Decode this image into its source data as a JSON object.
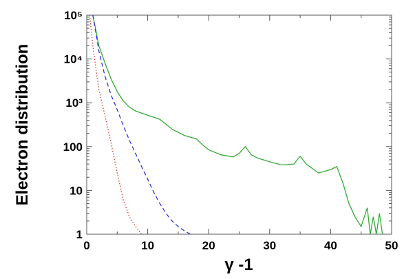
{
  "chart_data": {
    "type": "line",
    "title": "",
    "xlabel": "γ -1",
    "ylabel": "Electron distribution",
    "xlim": [
      0,
      50
    ],
    "ylim": [
      1,
      100000
    ],
    "yscale": "log",
    "grid": false,
    "legend": "none",
    "x_ticks": [
      0,
      10,
      20,
      30,
      40,
      50
    ],
    "y_ticks": [
      {
        "value": 1,
        "label": "1"
      },
      {
        "value": 10,
        "label": "10"
      },
      {
        "value": 100,
        "label": "100"
      },
      {
        "value": 1000,
        "label": "10³"
      },
      {
        "value": 10000,
        "label": "10⁴"
      },
      {
        "value": 100000,
        "label": "10⁵"
      }
    ],
    "series": [
      {
        "color": "#33aa33",
        "style": "solid",
        "points": [
          [
            1,
            100000
          ],
          [
            1.5,
            45000
          ],
          [
            2,
            20000
          ],
          [
            3,
            8000
          ],
          [
            4,
            3500
          ],
          [
            5,
            1800
          ],
          [
            6,
            1100
          ],
          [
            7,
            800
          ],
          [
            8,
            650
          ],
          [
            10,
            520
          ],
          [
            12,
            420
          ],
          [
            14,
            250
          ],
          [
            16,
            180
          ],
          [
            18,
            150
          ],
          [
            19,
            110
          ],
          [
            20,
            85
          ],
          [
            22,
            65
          ],
          [
            24,
            58
          ],
          [
            25,
            70
          ],
          [
            26,
            100
          ],
          [
            27,
            65
          ],
          [
            28,
            55
          ],
          [
            30,
            45
          ],
          [
            32,
            38
          ],
          [
            34,
            40
          ],
          [
            35,
            60
          ],
          [
            36,
            40
          ],
          [
            38,
            25
          ],
          [
            40,
            30
          ],
          [
            41,
            35
          ],
          [
            42,
            15
          ],
          [
            43,
            5
          ],
          [
            44,
            2.5
          ],
          [
            45,
            1.5
          ],
          [
            46,
            4
          ],
          [
            46.5,
            1
          ],
          [
            47,
            2.5
          ],
          [
            47.5,
            1
          ],
          [
            48,
            3
          ],
          [
            48.5,
            1
          ]
        ]
      },
      {
        "color": "#3333dd",
        "style": "dashed",
        "points": [
          [
            1,
            100000
          ],
          [
            1.5,
            40000
          ],
          [
            2,
            15000
          ],
          [
            3,
            4000
          ],
          [
            4,
            1500
          ],
          [
            5,
            700
          ],
          [
            6,
            300
          ],
          [
            7,
            140
          ],
          [
            8,
            70
          ],
          [
            9,
            35
          ],
          [
            10,
            18
          ],
          [
            11,
            9
          ],
          [
            12,
            5
          ],
          [
            13,
            3
          ],
          [
            14,
            2
          ],
          [
            15,
            1.5
          ],
          [
            16,
            1.2
          ],
          [
            17,
            1
          ]
        ]
      },
      {
        "color": "#dd3333",
        "style": "dotted",
        "points": [
          [
            0.5,
            100000
          ],
          [
            1,
            20000
          ],
          [
            1.5,
            6000
          ],
          [
            2,
            2000
          ],
          [
            3,
            500
          ],
          [
            4,
            120
          ],
          [
            5,
            25
          ],
          [
            6,
            6
          ],
          [
            7,
            2.5
          ],
          [
            8,
            1.5
          ],
          [
            9,
            1
          ]
        ]
      }
    ]
  }
}
